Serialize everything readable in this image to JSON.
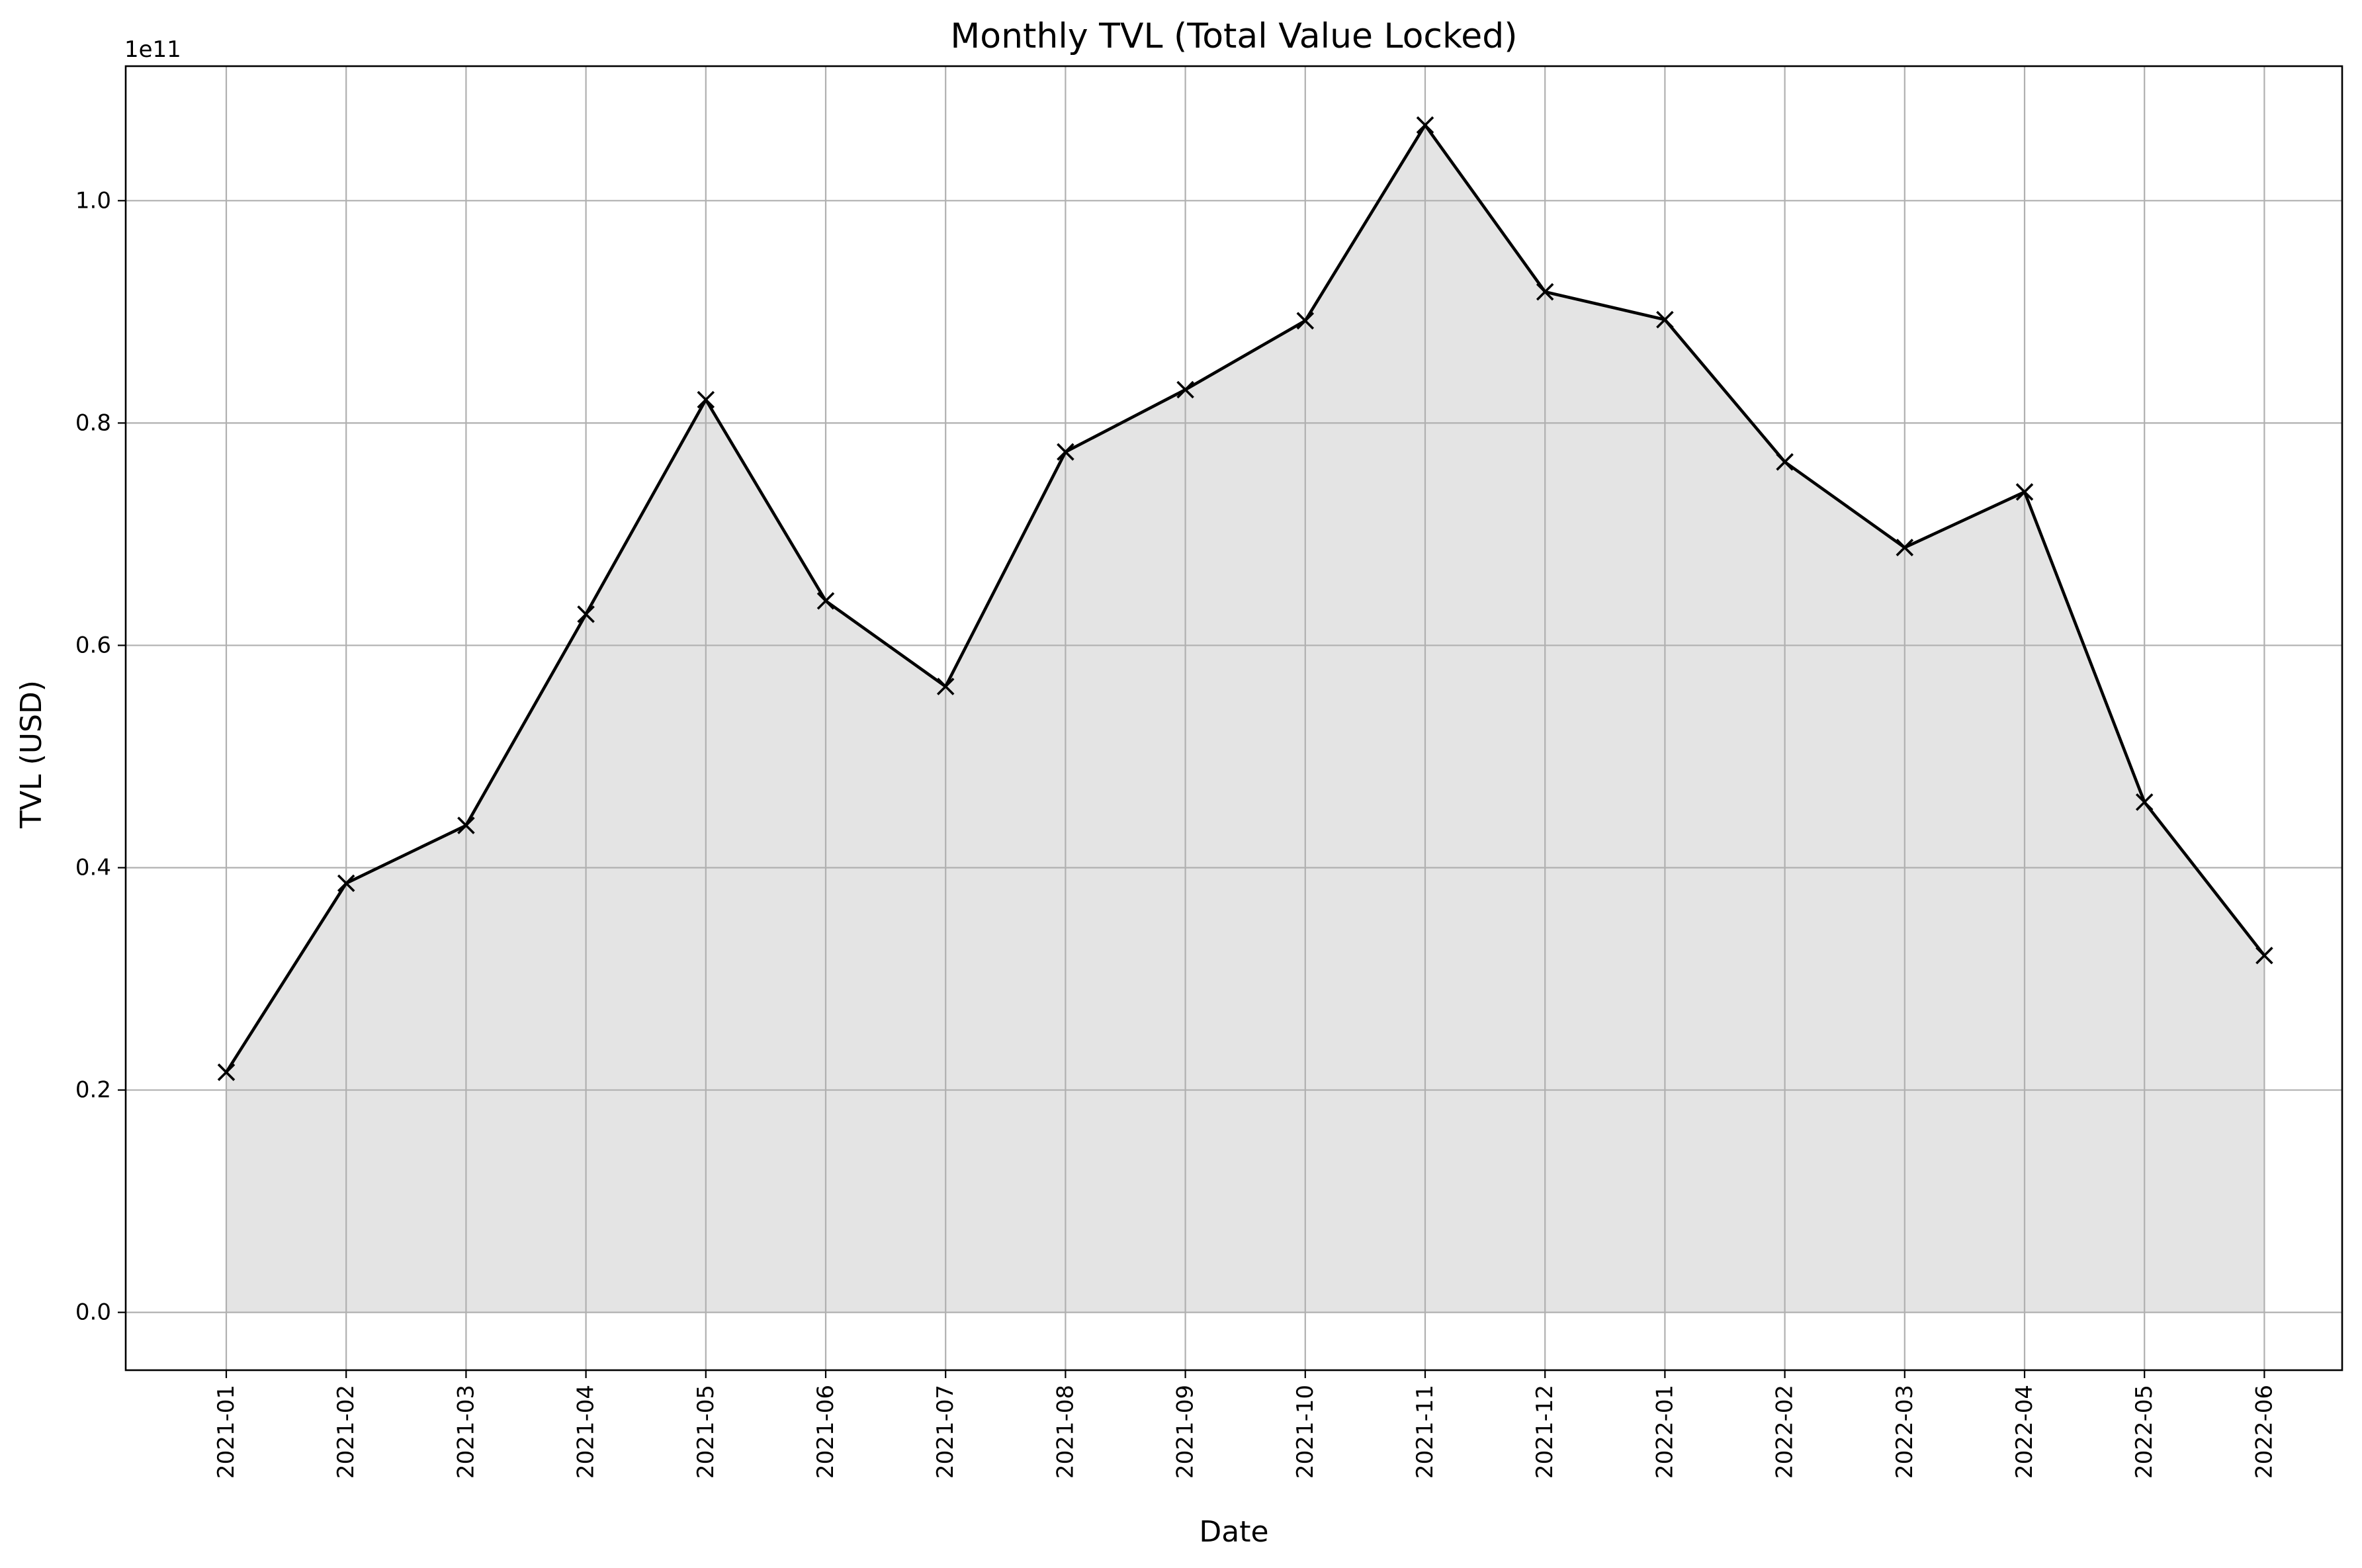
{
  "chart_data": {
    "type": "area",
    "title": "Monthly TVL (Total Value Locked)",
    "xlabel": "Date",
    "ylabel": "TVL (USD)",
    "y_offset_text": "1e11",
    "y_scale_factor": 100000000000,
    "categories": [
      "2021-01",
      "2021-02",
      "2021-03",
      "2021-04",
      "2021-05",
      "2021-06",
      "2021-07",
      "2021-08",
      "2021-09",
      "2021-10",
      "2021-11",
      "2021-12",
      "2022-01",
      "2022-02",
      "2022-03",
      "2022-04",
      "2022-05",
      "2022-06"
    ],
    "series": [
      {
        "values": [
          21600000000,
          38600000000,
          43800000000,
          62800000000,
          82100000000,
          64000000000,
          56300000000,
          77400000000,
          83000000000,
          89200000000,
          106800000000,
          91800000000,
          89300000000,
          76500000000,
          68800000000,
          73800000000,
          45900000000,
          32100000000
        ],
        "line_color": "#000000",
        "fill_color": "#e4e4e4",
        "marker": "x"
      }
    ],
    "ylim": [
      -5200000000,
      112100000000
    ],
    "yticks": [
      0,
      20000000000,
      40000000000,
      60000000000,
      80000000000,
      100000000000
    ],
    "ytick_labels": [
      "0.0",
      "0.2",
      "0.4",
      "0.6",
      "0.8",
      "1.0"
    ],
    "grid": true,
    "x_tick_rotation": 90
  }
}
